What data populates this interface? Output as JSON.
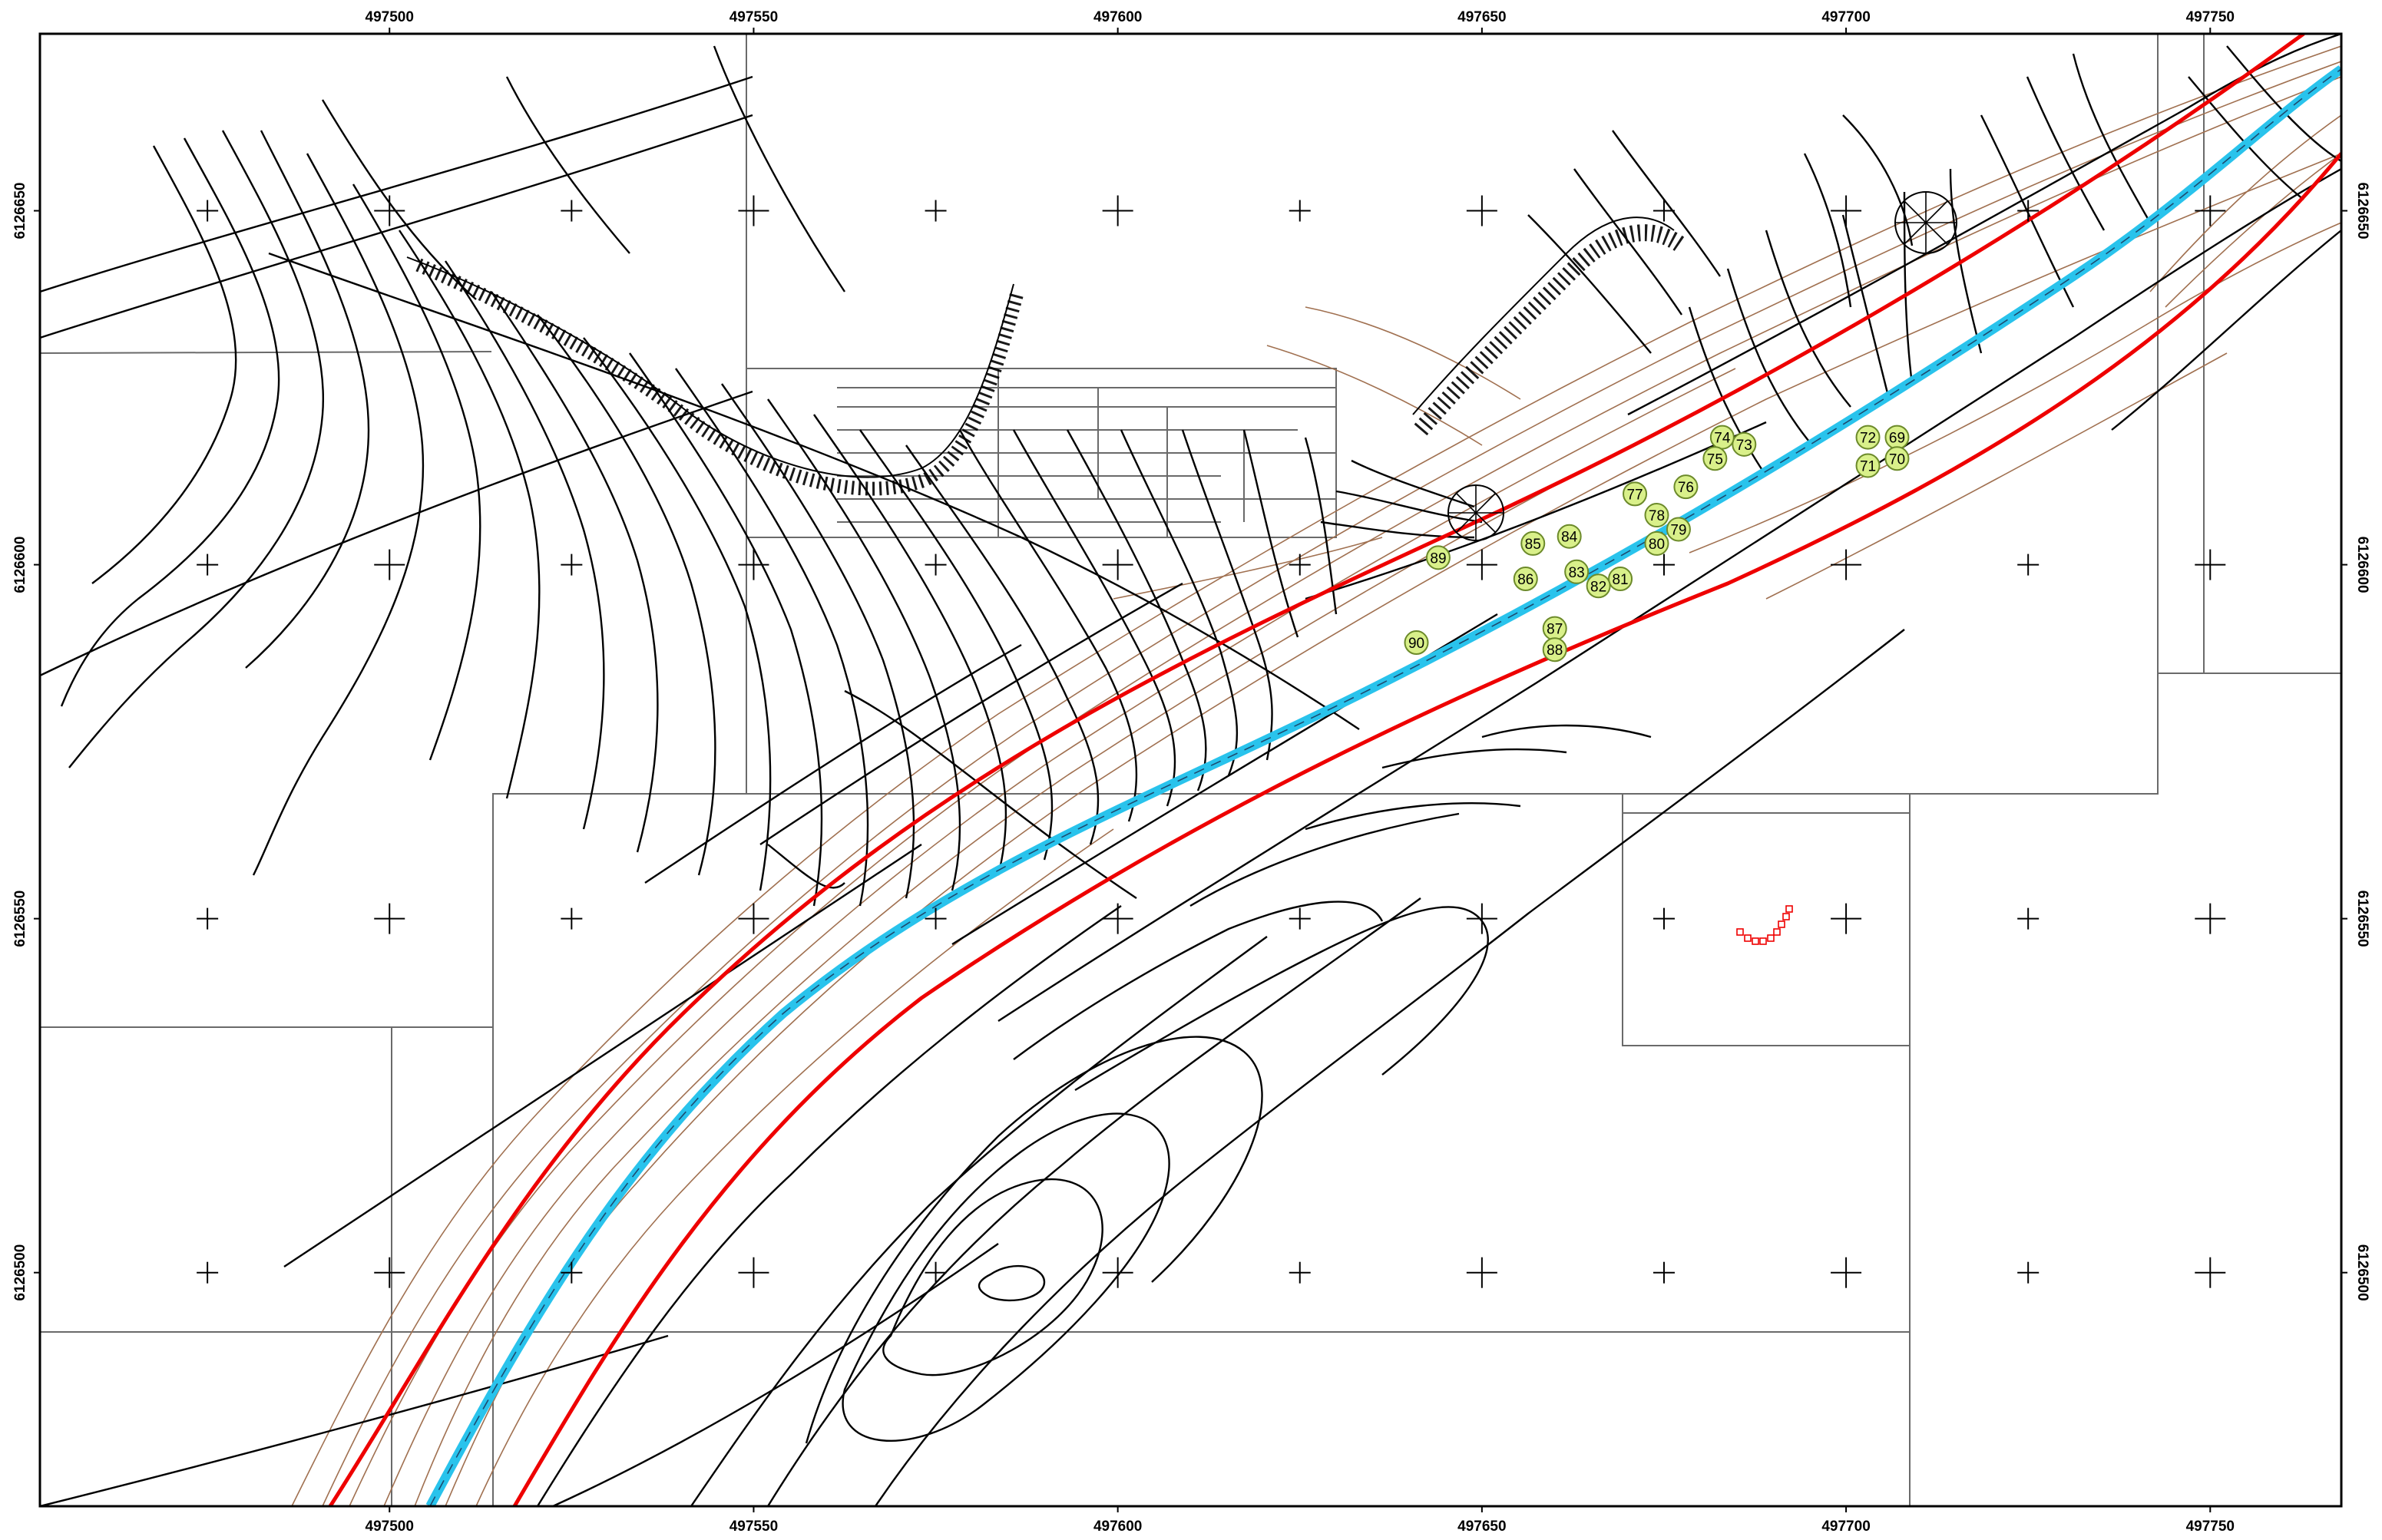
{
  "map": {
    "x_axis_labels": [
      "497500",
      "497550",
      "497600",
      "497650",
      "497700",
      "497750"
    ],
    "y_axis_labels": [
      "6126650",
      "6126600",
      "6126550",
      "6126500"
    ],
    "x_range": [
      497452,
      497768
    ],
    "y_range": [
      6126467,
      6126675
    ],
    "markers": [
      {
        "id": "69",
        "e": 497707,
        "n": 6126618
      },
      {
        "id": "70",
        "e": 497707,
        "n": 6126615
      },
      {
        "id": "71",
        "e": 497703,
        "n": 6126614
      },
      {
        "id": "72",
        "e": 497703,
        "n": 6126618
      },
      {
        "id": "73",
        "e": 497686,
        "n": 6126617
      },
      {
        "id": "74",
        "e": 497683,
        "n": 6126618
      },
      {
        "id": "75",
        "e": 497682,
        "n": 6126615
      },
      {
        "id": "76",
        "e": 497678,
        "n": 6126611
      },
      {
        "id": "77",
        "e": 497671,
        "n": 6126610
      },
      {
        "id": "78",
        "e": 497674,
        "n": 6126607
      },
      {
        "id": "79",
        "e": 497677,
        "n": 6126605
      },
      {
        "id": "80",
        "e": 497674,
        "n": 6126603
      },
      {
        "id": "81",
        "e": 497669,
        "n": 6126598
      },
      {
        "id": "82",
        "e": 497666,
        "n": 6126597
      },
      {
        "id": "83",
        "e": 497663,
        "n": 6126599
      },
      {
        "id": "84",
        "e": 497662,
        "n": 6126604
      },
      {
        "id": "85",
        "e": 497657,
        "n": 6126603
      },
      {
        "id": "86",
        "e": 497656,
        "n": 6126598
      },
      {
        "id": "87",
        "e": 497660,
        "n": 6126591
      },
      {
        "id": "88",
        "e": 497660,
        "n": 6126588
      },
      {
        "id": "89",
        "e": 497644,
        "n": 6126601
      },
      {
        "id": "90",
        "e": 497641,
        "n": 6126589
      }
    ],
    "colors": {
      "frame": "#000000",
      "red_line": "#ee0000",
      "cyan_line": "#29c3ec",
      "brown_contour": "#a07050",
      "marker_fill": "#d9f08a",
      "marker_stroke": "#6c8a2a",
      "grey_line": "#6a6a6a"
    }
  }
}
